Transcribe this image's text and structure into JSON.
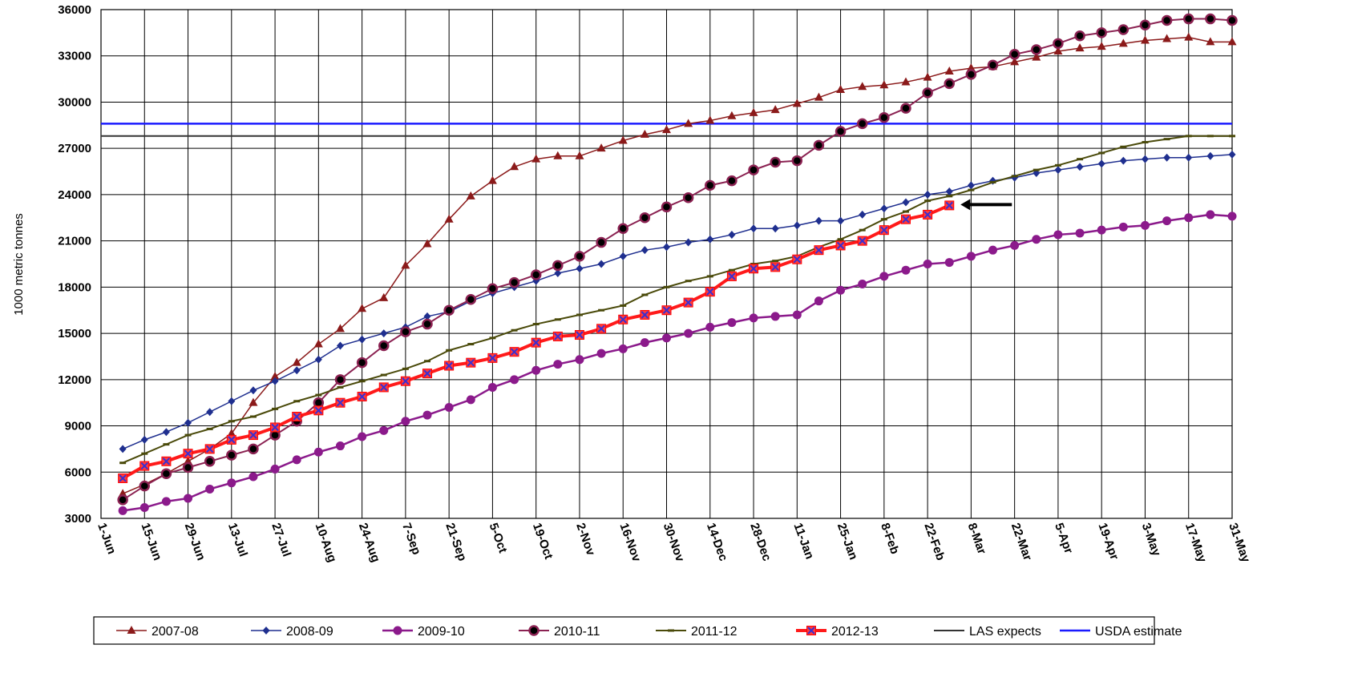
{
  "chart_data": {
    "type": "line",
    "title": "",
    "xlabel": "",
    "ylabel": "1000 metric tonnes",
    "ylim": [
      3000,
      36000
    ],
    "yticks": [
      3000,
      6000,
      9000,
      12000,
      15000,
      18000,
      21000,
      24000,
      27000,
      30000,
      33000,
      36000
    ],
    "grid": true,
    "legend_position": "bottom",
    "x_tick_labels": [
      "1-Jun",
      "15-Jun",
      "29-Jun",
      "13-Jul",
      "27-Jul",
      "10-Aug",
      "24-Aug",
      "7-Sep",
      "21-Sep",
      "5-Oct",
      "19-Oct",
      "2-Nov",
      "16-Nov",
      "30-Nov",
      "14-Dec",
      "28-Dec",
      "11-Jan",
      "25-Jan",
      "8-Feb",
      "22-Feb",
      "8-Mar",
      "22-Mar",
      "5-Apr",
      "19-Apr",
      "3-May",
      "17-May",
      "31-May"
    ],
    "series": [
      {
        "name": "2007-08",
        "color": "#8b1a1a",
        "marker": "triangle",
        "width": 1.5,
        "start_week": 1,
        "values": [
          4600,
          5200,
          5900,
          6700,
          7500,
          8500,
          10500,
          12200,
          13100,
          14300,
          15300,
          16600,
          17300,
          19400,
          20800,
          22400,
          23900,
          24900,
          25800,
          26300,
          26500,
          26500,
          27000,
          27500,
          27900,
          28200,
          28600,
          28800,
          29100,
          29300,
          29500,
          29900,
          30300,
          30800,
          31000,
          31100,
          31300,
          31600,
          32000,
          32200,
          32300,
          32600,
          32900,
          33300,
          33500,
          33600,
          33800,
          34000,
          34100,
          34200,
          33900,
          33900
        ]
      },
      {
        "name": "2008-09",
        "color": "#1f2f8f",
        "marker": "diamond",
        "width": 1.5,
        "start_week": 1,
        "values": [
          7500,
          8100,
          8600,
          9200,
          9900,
          10600,
          11300,
          11900,
          12600,
          13300,
          14200,
          14600,
          15000,
          15400,
          16100,
          16400,
          17100,
          17600,
          18000,
          18400,
          18900,
          19200,
          19500,
          20000,
          20400,
          20600,
          20900,
          21100,
          21400,
          21800,
          21800,
          22000,
          22300,
          22300,
          22700,
          23100,
          23500,
          24000,
          24200,
          24600,
          24900,
          25100,
          25400,
          25600,
          25800,
          26000,
          26200,
          26300,
          26400,
          26400,
          26500,
          26600
        ]
      },
      {
        "name": "2009-10",
        "color": "#8b1a8b",
        "marker": "circle",
        "width": 2.5,
        "start_week": 1,
        "values": [
          3500,
          3700,
          4100,
          4300,
          4900,
          5300,
          5700,
          6200,
          6800,
          7300,
          7700,
          8300,
          8700,
          9300,
          9700,
          10200,
          10700,
          11500,
          12000,
          12600,
          13000,
          13300,
          13700,
          14000,
          14400,
          14700,
          15000,
          15400,
          15700,
          16000,
          16100,
          16200,
          17100,
          17800,
          18200,
          18700,
          19100,
          19500,
          19600,
          20000,
          20400,
          20700,
          21100,
          21400,
          21500,
          21700,
          21900,
          22000,
          22300,
          22500,
          22700,
          22600
        ]
      },
      {
        "name": "2010-11",
        "color": "#8b2252",
        "marker": "circle-dark",
        "width": 2,
        "start_week": 1,
        "values": [
          4200,
          5100,
          5900,
          6300,
          6700,
          7100,
          7500,
          8400,
          9300,
          10500,
          12000,
          13100,
          14200,
          15100,
          15600,
          16500,
          17200,
          17900,
          18300,
          18800,
          19400,
          20000,
          20900,
          21800,
          22500,
          23200,
          23800,
          24600,
          24900,
          25600,
          26100,
          26200,
          27200,
          28100,
          28600,
          29000,
          29600,
          30600,
          31200,
          31800,
          32400,
          33100,
          33400,
          33800,
          34300,
          34500,
          34700,
          35000,
          35300,
          35400,
          35400,
          35300
        ]
      },
      {
        "name": "2011-12",
        "color": "#4a4a0a",
        "marker": "dash",
        "width": 2,
        "start_week": 1,
        "values": [
          6600,
          7200,
          7800,
          8400,
          8800,
          9300,
          9600,
          10100,
          10600,
          11000,
          11500,
          11900,
          12300,
          12700,
          13200,
          13900,
          14300,
          14700,
          15200,
          15600,
          15900,
          16200,
          16500,
          16800,
          17500,
          18000,
          18400,
          18700,
          19100,
          19500,
          19700,
          20000,
          20600,
          21100,
          21700,
          22400,
          22900,
          23600,
          23900,
          24300,
          24800,
          25200,
          25600,
          25900,
          26300,
          26700,
          27100,
          27400,
          27600,
          27800,
          27800,
          27800
        ]
      },
      {
        "name": "2012-13",
        "color": "#ff1a1a",
        "marker": "square-x",
        "width": 4,
        "start_week": 1,
        "values": [
          5600,
          6400,
          6700,
          7200,
          7500,
          8100,
          8400,
          8900,
          9600,
          10000,
          10500,
          10900,
          11500,
          11900,
          12400,
          12900,
          13100,
          13400,
          13800,
          14400,
          14800,
          14900,
          15300,
          15900,
          16200,
          16500,
          17000,
          17700,
          18700,
          19200,
          19300,
          19800,
          20400,
          20700,
          21000,
          21700,
          22400,
          22700,
          23300
        ]
      },
      {
        "name": "LAS expects",
        "color": "#333333",
        "marker": "none",
        "width": 2,
        "constant": 27800
      },
      {
        "name": "USDA estimate",
        "color": "#1a1aff",
        "marker": "none",
        "width": 2.5,
        "constant": 28600
      }
    ],
    "annotations": [
      {
        "type": "arrow",
        "x_week": 39,
        "y": 23300,
        "direction": "left"
      }
    ]
  }
}
